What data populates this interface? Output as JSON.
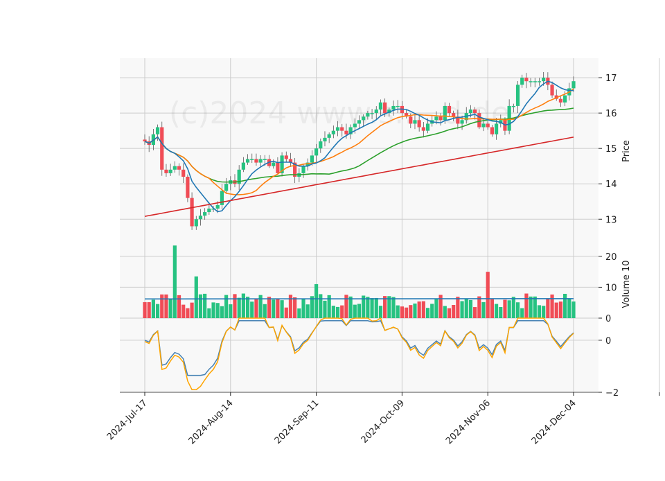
{
  "chart_data": {
    "type": "candlestick",
    "watermark": "(c)2024 www.s.....d.de",
    "colors": {
      "up": "#26c281",
      "down": "#f04c56",
      "ma_short": "#1f77b4",
      "ma_mid": "#ff7f0e",
      "ma_long": "#2ca02c",
      "ma_200": "#d62728",
      "volume_ma": "#1f77b4",
      "osc_line_1": "#4682b4",
      "osc_line_2": "#ffa500",
      "panel_bg": "#f8f8f8",
      "grid": "#cccccc"
    },
    "x_ticks": [
      {
        "i": 0,
        "label": "2024-Jul-17"
      },
      {
        "i": 20,
        "label": "2024-Aug-14"
      },
      {
        "i": 40,
        "label": "2024-Sep-11"
      },
      {
        "i": 60,
        "label": "2024-Oct-09"
      },
      {
        "i": 80,
        "label": "2024-Nov-06"
      },
      {
        "i": 100,
        "label": "2024-Dec-04"
      }
    ],
    "price_panel": {
      "ylabel": "Price",
      "ylim": [
        12.3,
        17.55
      ],
      "yticks": [
        13,
        14,
        15,
        16,
        17
      ],
      "close": [
        15.2,
        15.1,
        15.4,
        15.6,
        14.4,
        14.3,
        14.4,
        14.5,
        14.4,
        14.2,
        13.6,
        12.8,
        13.0,
        13.1,
        13.2,
        13.3,
        13.3,
        13.4,
        13.8,
        14.0,
        14.1,
        14.0,
        14.4,
        14.6,
        14.7,
        14.7,
        14.6,
        14.7,
        14.7,
        14.5,
        14.6,
        14.3,
        14.8,
        14.7,
        14.6,
        14.2,
        14.3,
        14.5,
        14.6,
        14.8,
        15.0,
        15.2,
        15.3,
        15.4,
        15.5,
        15.6,
        15.5,
        15.4,
        15.6,
        15.7,
        15.8,
        15.9,
        16.0,
        16.0,
        16.1,
        16.3,
        16.0,
        16.1,
        16.2,
        16.2,
        16.0,
        15.9,
        15.7,
        15.8,
        15.6,
        15.5,
        15.7,
        15.8,
        15.9,
        15.8,
        16.2,
        16.0,
        15.9,
        15.7,
        15.8,
        16.0,
        16.1,
        16.0,
        15.6,
        15.7,
        15.6,
        15.4,
        15.7,
        15.8,
        15.5,
        16.2,
        16.2,
        16.8,
        17.0,
        16.9,
        16.9,
        16.9,
        16.9,
        17.0,
        16.8,
        16.5,
        16.4,
        16.3,
        16.5,
        16.7,
        16.9
      ]
    },
    "volume_panel": {
      "ylabel": "Volume  10^6",
      "ylim": [
        0,
        24
      ],
      "yticks": [
        0,
        10,
        20
      ],
      "ma_level": 6.3
    },
    "oscillator_panel": {
      "yticks": [
        -2,
        0
      ],
      "ylim": [
        -2,
        0.85
      ]
    }
  }
}
